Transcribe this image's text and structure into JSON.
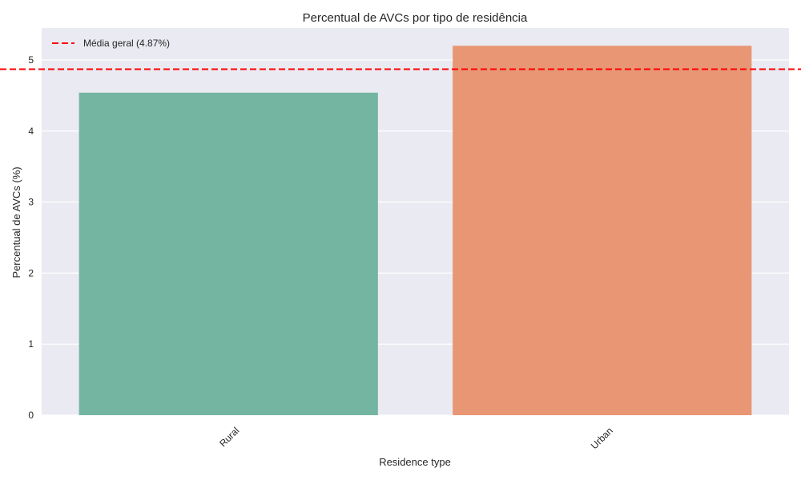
{
  "chart_data": {
    "type": "bar",
    "title": "Percentual de AVCs por tipo de residência",
    "xlabel": "Residence type",
    "ylabel": "Percentual de AVCs (%)",
    "categories": [
      "Rural",
      "Urban"
    ],
    "values": [
      4.54,
      5.2
    ],
    "colors": [
      "#74b5a1",
      "#e89674"
    ],
    "ylim": [
      0,
      5.45
    ],
    "yticks": [
      0,
      1,
      2,
      3,
      4,
      5
    ],
    "grid": true,
    "background": "#eaeaf2",
    "reference_line": {
      "value": 4.87,
      "label": "Média geral (4.87%)",
      "color": "#ff0000",
      "style": "dashed"
    },
    "legend_position": "top-left"
  }
}
